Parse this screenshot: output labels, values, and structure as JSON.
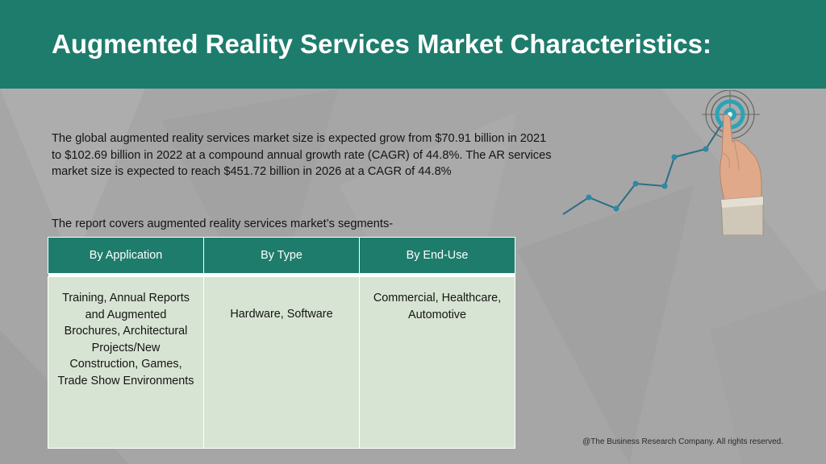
{
  "slide": {
    "title": "Augmented Reality Services Market Characteristics:",
    "paragraph": "The global augmented reality services market size is expected grow from $70.91 billion in 2021 to $102.69 billion in 2022 at a compound annual growth rate (CAGR) of 44.8%. The AR services market size is expected to reach $451.72 billion in 2026 at a CAGR of 44.8%",
    "segments_intro": "The report covers augmented reality services market’s segments-",
    "footer": "@The Business Research Company. All rights reserved."
  },
  "segments_table": {
    "headers": [
      "By Application",
      "By Type",
      "By End-Use"
    ],
    "cells": [
      "Training, Annual Reports and Augmented Brochures, Architectural Projects/New Construction, Games, Trade Show Environments",
      "Hardware, Software",
      "Commercial, Healthcare, Automotive"
    ]
  },
  "colors": {
    "header_bg": "#1e7c6c",
    "slide_bg": "#a6a6a6",
    "table_cell_bg": "#d8e4d3",
    "target_accent": "#2ba3b5"
  },
  "icons": {
    "illustration": "hand-touching-target-growth-chart-icon"
  }
}
